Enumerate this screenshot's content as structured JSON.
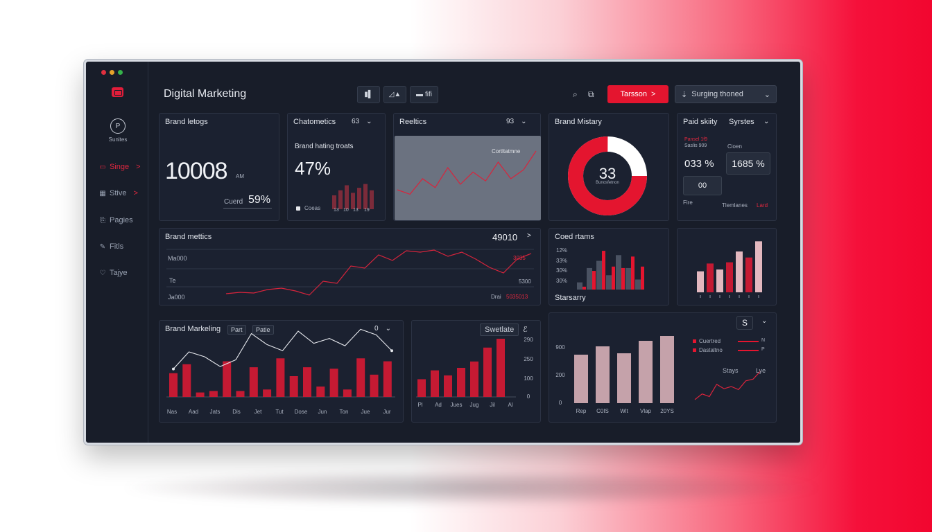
{
  "window": {
    "dots": [
      "#e0303f",
      "#e6a22a",
      "#35b24a"
    ]
  },
  "colors": {
    "accent": "#e4152f",
    "bar_light": "#e3b8bf",
    "bar_gray": "#4a5262",
    "panel": "#1b2130"
  },
  "sidebar": {
    "logo_icon": "briefcase-icon",
    "user_initial": "P",
    "user_label": "Sunites",
    "items": [
      {
        "icon": "list-icon",
        "glyph": "▭",
        "label": "Singe",
        "chevron": ">"
      },
      {
        "icon": "store-icon",
        "glyph": "▦",
        "label": "Stive",
        "chevron": ">"
      },
      {
        "icon": "pages-icon",
        "glyph": "⎘",
        "label": "Pagies"
      },
      {
        "icon": "pen-icon",
        "glyph": "✎",
        "label": "Fitls"
      },
      {
        "icon": "heart-icon",
        "glyph": "♡",
        "label": "Tajye"
      }
    ]
  },
  "header": {
    "title": "Digital Marketing",
    "tools": [
      {
        "icon": "bars-icon",
        "glyph": "▮▌"
      },
      {
        "icon": "line-chart-icon",
        "glyph": "◿▲"
      },
      {
        "icon": "image-icon",
        "glyph": "▬",
        "label": "fifi"
      }
    ],
    "search_icon": "⌕",
    "copy_icon": "⧉",
    "red_button": {
      "label": "Tarsson",
      "chevron": ">"
    },
    "select": {
      "icon": "⇣",
      "label": "Surging thoned",
      "caret": "⌄"
    }
  },
  "cards": {
    "brand_ratings": {
      "title": "Brand letogs",
      "value": "10008",
      "unit": "AM",
      "foot_label": "Cuerd",
      "foot_value": "59%"
    },
    "characteristics": {
      "title": "Chatometics",
      "badge": "63",
      "caret": "⌄",
      "subtitle": "Brand hating troats",
      "value": "47%",
      "legend": "Coeas",
      "bars": [
        22,
        30,
        38,
        26,
        34,
        40,
        30
      ],
      "bar_labels": [
        "13",
        "10",
        "13",
        "19"
      ]
    },
    "realtics": {
      "title": "Reeltics",
      "badge": "93",
      "caret": "⌄",
      "overlay_label": "Cortltatmne"
    },
    "brand_history": {
      "title": "Brand Mistary",
      "value": "33",
      "sublabel": "Bunosfetnon",
      "share_red": 0.75
    },
    "paid_activity": {
      "title": "Paid skiity",
      "title2": "Syrstes",
      "caret": "⌄",
      "sub1": "Pansel 1f9",
      "sub2": "Saslis 909",
      "sub3": "Cioen",
      "val1": "033 %",
      "val2": "1685 %",
      "chip": "00",
      "foot_left": "Fire",
      "foot_right": "Tlemlanes",
      "foot_red": "Lard"
    },
    "brand_metrics": {
      "title": "Brand mettics",
      "value": "49010",
      "chev": ">",
      "y_labels": [
        "Ma000",
        "Te",
        "Ja000"
      ],
      "right_labels": [
        "3035",
        "5300"
      ],
      "foot_right": "Drai",
      "foot_right_red": "5035013"
    },
    "coed_items": {
      "title": "Coed rtams",
      "y_labels": [
        "12%",
        "33%",
        "30%",
        "30%"
      ],
      "foot": "Starsarry"
    },
    "brand_marketing": {
      "title": "Brand Markeling",
      "tags": [
        "Part",
        "Patie"
      ],
      "badge": "0",
      "caret": "⌄",
      "x_labels": [
        "Nas",
        "Aad",
        "Jats",
        "Dis",
        "Jet",
        "Tut",
        "Dose",
        "Jun",
        "Ton",
        "Jue",
        "Jur"
      ]
    },
    "swedate": {
      "title": "Swetlate",
      "badge": "ℰ",
      "y_labels": [
        "290",
        "250",
        "100",
        "0"
      ],
      "x_labels": [
        "Pl",
        "Ad",
        "Jues",
        "Jug",
        "Jil",
        "Al"
      ]
    },
    "stays": {
      "badge": "S",
      "caret": "⌄",
      "y_labels": [
        "900",
        "200",
        "0"
      ],
      "x_labels": [
        "Rep",
        "C0IS",
        "Wit",
        "Vlap",
        "20YS"
      ],
      "legend": [
        {
          "label": "Cuertred",
          "value": "N"
        },
        {
          "label": "Dastaltno",
          "value": "P"
        }
      ],
      "line_title": "Stays",
      "line_title2": "Lye"
    }
  },
  "chart_data": [
    {
      "type": "bar",
      "title": "Chatometics",
      "values": [
        22,
        30,
        38,
        26,
        34,
        40,
        30
      ],
      "colors": [
        "#7c2b3a"
      ]
    },
    {
      "type": "line",
      "title": "Reeltics",
      "values": [
        50,
        46,
        60,
        52,
        70,
        55,
        66,
        58,
        75,
        60,
        68,
        85
      ]
    },
    {
      "type": "pie",
      "title": "Brand Mistary",
      "values": [
        75,
        25
      ]
    },
    {
      "type": "line",
      "title": "Brand mettics",
      "values": [
        10,
        12,
        11,
        16,
        18,
        14,
        8,
        28,
        25,
        50,
        47,
        66,
        58,
        72,
        70,
        73,
        64,
        70,
        60,
        48,
        40,
        60,
        68
      ]
    },
    {
      "type": "bar",
      "title": "Coed rtams",
      "series": [
        {
          "values": [
            10,
            30,
            40,
            20,
            48,
            30,
            14
          ]
        },
        {
          "values": [
            4,
            26,
            54,
            32,
            30,
            46,
            32
          ]
        }
      ]
    },
    {
      "type": "bar",
      "values": [
        35,
        48,
        38,
        50,
        68,
        58,
        85
      ],
      "colors": [
        "#e3b8bf",
        "#c51a33"
      ]
    },
    {
      "type": "bar",
      "title": "Brand Markeling",
      "series": [
        {
          "name": "bars",
          "values": [
            32,
            44,
            6,
            8,
            48,
            8,
            40,
            10,
            52,
            28,
            40,
            14,
            38,
            10,
            52,
            30,
            48
          ]
        },
        {
          "name": "line",
          "values": [
            30,
            58,
            50,
            34,
            45,
            88,
            70,
            60,
            92,
            72,
            80,
            68,
            95,
            86,
            60
          ]
        }
      ]
    },
    {
      "type": "bar",
      "title": "Swetlate",
      "values": [
        28,
        42,
        34,
        46,
        56,
        78,
        92
      ]
    },
    {
      "type": "bar",
      "values": [
        70,
        82,
        72,
        90,
        97
      ],
      "ylim": [
        0,
        100
      ]
    },
    {
      "type": "line",
      "title": "Stays",
      "values": [
        5,
        18,
        12,
        40,
        30,
        35,
        28,
        48,
        52,
        70
      ]
    }
  ]
}
